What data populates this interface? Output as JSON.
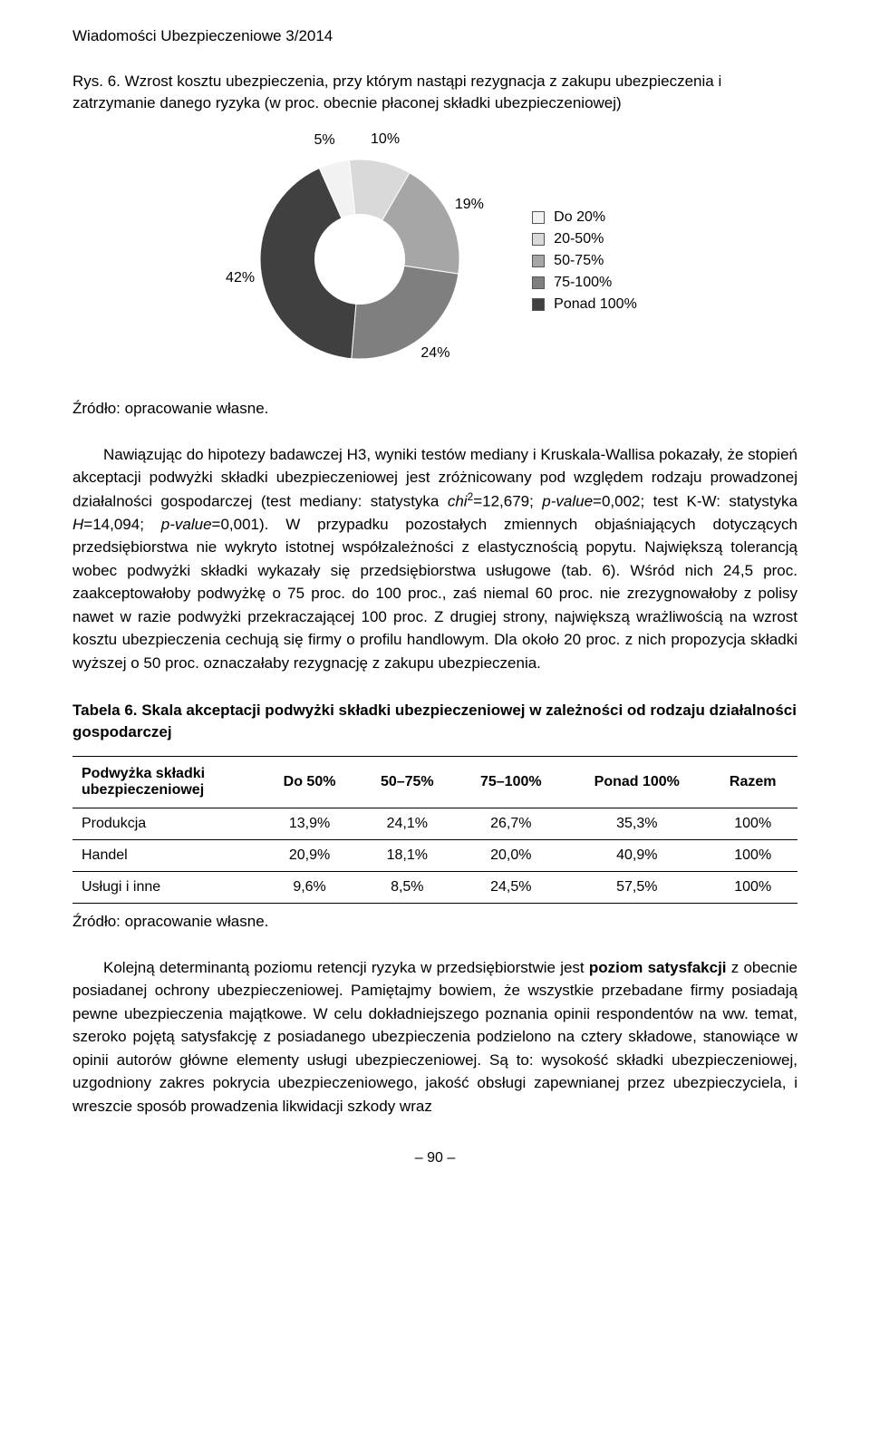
{
  "header": {
    "journal": "Wiadomości Ubezpieczeniowe 3/2014"
  },
  "figure": {
    "caption": "Rys. 6. Wzrost kosztu ubezpieczenia, przy którym nastąpi rezygnacja z zakupu ubezpieczenia i zatrzymanie danego ryzyka (w proc. obecnie płaconej składki ubezpieczeniowej)",
    "source": "Źródło: opracowanie własne.",
    "chart": {
      "type": "donut",
      "inner_radius_ratio": 0.45,
      "background": "#ffffff",
      "label_fontsize": 16,
      "slices": [
        {
          "label": "Do 20%",
          "value": 5,
          "color": "#f2f2f2",
          "text": "5%"
        },
        {
          "label": "20-50%",
          "value": 10,
          "color": "#d9d9d9",
          "text": "10%"
        },
        {
          "label": "50-75%",
          "value": 19,
          "color": "#a6a6a6",
          "text": "19%"
        },
        {
          "label": "75-100%",
          "value": 24,
          "color": "#7f7f7f",
          "text": "24%"
        },
        {
          "label": "Ponad 100%",
          "value": 42,
          "color": "#404040",
          "text": "42%"
        }
      ],
      "legend_marker_size": 14
    }
  },
  "paragraph1": "Nawiązując do hipotezy badawczej H3, wyniki testów mediany i Kruskala-Wallisa pokazały, że stopień akceptacji podwyżki składki ubezpieczeniowej jest zróżnicowany pod względem rodzaju prowadzonej działalności gospodarczej (test mediany: statystyka chi²=12,679; p-value=0,002; test K-W: statystyka H=14,094; p-value=0,001). W przypadku pozostałych zmiennych objaśniających dotyczących przedsiębiorstwa nie wykryto istotnej współzależności z elastycznością popytu. Największą tolerancją wobec podwyżki składki wykazały się przedsiębiorstwa usługowe (tab. 6). Wśród nich 24,5 proc. zaakceptowałoby podwyżkę o 75 proc. do 100 proc., zaś niemal 60 proc. nie zrezygnowałoby z polisy nawet w razie podwyżki przekraczającej 100 proc. Z drugiej strony, największą wrażliwością na wzrost kosztu ubezpieczenia cechują się firmy o profilu handlowym. Dla około 20 proc. z nich propozycja składki wyższej o 50 proc. oznaczałaby rezygnację z zakupu ubezpieczenia.",
  "table6": {
    "title": "Tabela 6. Skala akceptacji podwyżki składki ubezpieczeniowej w zależności od rodzaju działalności gospodarczej",
    "columns": [
      "Podwyżka składki ubezpieczeniowej",
      "Do 50%",
      "50–75%",
      "75–100%",
      "Ponad 100%",
      "Razem"
    ],
    "rows": [
      [
        "Produkcja",
        "13,9%",
        "24,1%",
        "26,7%",
        "35,3%",
        "100%"
      ],
      [
        "Handel",
        "20,9%",
        "18,1%",
        "20,0%",
        "40,9%",
        "100%"
      ],
      [
        "Usługi i inne",
        "9,6%",
        "8,5%",
        "24,5%",
        "57,5%",
        "100%"
      ]
    ],
    "source": "Źródło: opracowanie własne."
  },
  "paragraph2": "Kolejną determinantą poziomu retencji ryzyka w przedsiębiorstwie jest poziom satysfakcji z obecnie posiadanej ochrony ubezpieczeniowej. Pamiętajmy bowiem, że wszystkie przebadane firmy posiadają pewne ubezpieczenia majątkowe. W celu dokładniejszego poznania opinii respondentów na ww. temat, szeroko pojętą satysfakcję z posiadanego ubezpieczenia podzielono na cztery składowe, stanowiące w opinii autorów główne elementy usługi ubezpieczeniowej. Są to: wysokość składki ubezpieczeniowej, uzgodniony zakres pokrycia ubezpieczeniowego, jakość obsługi zapewnianej przez ubezpieczyciela, i wreszcie sposób prowadzenia likwidacji szkody wraz",
  "boldPhrase": "poziom satysfakcji",
  "pageNumber": "– 90 –"
}
